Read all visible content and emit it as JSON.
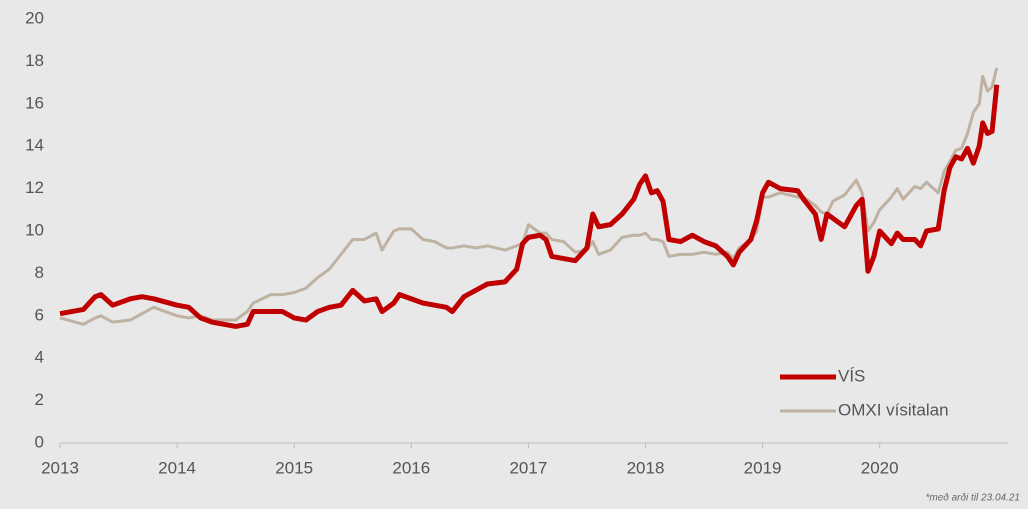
{
  "chart_data": {
    "type": "line",
    "x": [
      2013.0,
      2013.2,
      2013.3,
      2013.35,
      2013.45,
      2013.6,
      2013.7,
      2013.8,
      2014.0,
      2014.1,
      2014.2,
      2014.3,
      2014.4,
      2014.5,
      2014.6,
      2014.65,
      2014.8,
      2014.9,
      2015.0,
      2015.1,
      2015.2,
      2015.3,
      2015.4,
      2015.5,
      2015.6,
      2015.7,
      2015.75,
      2015.85,
      2015.9,
      2016.0,
      2016.1,
      2016.2,
      2016.3,
      2016.35,
      2016.45,
      2016.55,
      2016.65,
      2016.8,
      2016.9,
      2016.95,
      2017.0,
      2017.1,
      2017.15,
      2017.2,
      2017.3,
      2017.4,
      2017.5,
      2017.55,
      2017.6,
      2017.7,
      2017.8,
      2017.9,
      2017.95,
      2018.0,
      2018.05,
      2018.1,
      2018.15,
      2018.2,
      2018.3,
      2018.4,
      2018.5,
      2018.6,
      2018.7,
      2018.75,
      2018.8,
      2018.9,
      2018.95,
      2019.0,
      2019.05,
      2019.15,
      2019.3,
      2019.35,
      2019.45,
      2019.5,
      2019.55,
      2019.6,
      2019.7,
      2019.8,
      2019.85,
      2019.9,
      2019.95,
      2020.0,
      2020.1,
      2020.15,
      2020.2,
      2020.3,
      2020.35,
      2020.4,
      2020.5,
      2020.55,
      2020.6,
      2020.65,
      2020.7,
      2020.75,
      2020.8,
      2020.85,
      2020.88,
      2020.92,
      2020.96,
      2021.0
    ],
    "series": [
      {
        "name": "OMXI vísitalan",
        "color": "#bfb2a3",
        "width": 3,
        "values": [
          5.9,
          5.6,
          5.9,
          6.0,
          5.7,
          5.8,
          6.1,
          6.4,
          6.0,
          5.9,
          6.0,
          5.8,
          5.8,
          5.8,
          6.2,
          6.6,
          7.0,
          7.0,
          7.1,
          7.3,
          7.8,
          8.2,
          8.9,
          9.6,
          9.6,
          9.9,
          9.1,
          10.0,
          10.1,
          10.1,
          9.6,
          9.5,
          9.2,
          9.2,
          9.3,
          9.2,
          9.3,
          9.1,
          9.3,
          9.4,
          10.3,
          9.9,
          9.9,
          9.6,
          9.5,
          9.0,
          9.1,
          9.5,
          8.9,
          9.1,
          9.7,
          9.8,
          9.8,
          9.9,
          9.6,
          9.6,
          9.5,
          8.8,
          8.9,
          8.9,
          9.0,
          8.9,
          9.0,
          8.7,
          9.2,
          9.6,
          10.0,
          11.6,
          11.6,
          11.8,
          11.6,
          11.6,
          11.2,
          10.9,
          10.8,
          11.4,
          11.7,
          12.4,
          11.8,
          10.0,
          10.4,
          11.0,
          11.6,
          12.0,
          11.5,
          12.1,
          12.0,
          12.3,
          11.8,
          12.8,
          13.3,
          13.8,
          13.9,
          14.6,
          15.6,
          16.0,
          17.3,
          16.6,
          16.8,
          17.7
        ]
      },
      {
        "name": "VÍS",
        "color": "#c00000",
        "width": 5,
        "values": [
          6.1,
          6.3,
          6.9,
          7.0,
          6.5,
          6.8,
          6.9,
          6.8,
          6.5,
          6.4,
          5.9,
          5.7,
          5.6,
          5.5,
          5.6,
          6.2,
          6.2,
          6.2,
          5.9,
          5.8,
          6.2,
          6.4,
          6.5,
          7.2,
          6.7,
          6.8,
          6.2,
          6.6,
          7.0,
          6.8,
          6.6,
          6.5,
          6.4,
          6.2,
          6.9,
          7.2,
          7.5,
          7.6,
          8.2,
          9.4,
          9.7,
          9.8,
          9.6,
          8.8,
          8.7,
          8.6,
          9.2,
          10.8,
          10.2,
          10.3,
          10.8,
          11.5,
          12.2,
          12.6,
          11.8,
          11.9,
          11.4,
          9.6,
          9.5,
          9.8,
          9.5,
          9.3,
          8.8,
          8.4,
          9.0,
          9.6,
          10.5,
          11.8,
          12.3,
          12.0,
          11.9,
          11.5,
          10.8,
          9.6,
          10.8,
          10.6,
          10.2,
          11.2,
          11.5,
          8.1,
          8.8,
          10.0,
          9.4,
          9.9,
          9.6,
          9.6,
          9.3,
          10.0,
          10.1,
          11.9,
          13.0,
          13.5,
          13.4,
          13.9,
          13.2,
          14.0,
          15.1,
          14.6,
          14.7,
          16.9
        ]
      }
    ],
    "xlim": [
      2013,
      2021.1
    ],
    "xticks": [
      2013,
      2014,
      2015,
      2016,
      2017,
      2018,
      2019,
      2020
    ],
    "ylim": [
      0,
      20
    ],
    "yticks": [
      0,
      2,
      4,
      6,
      8,
      10,
      12,
      14,
      16,
      18,
      20
    ],
    "grid": false,
    "legend": "lower right",
    "note": "*með arði til 23.04.21"
  }
}
